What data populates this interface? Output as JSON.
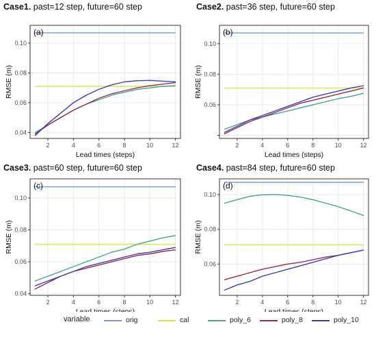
{
  "chart_data": [
    {
      "type": "line",
      "case_label": "Case1.",
      "title_rest": "past=12 step, future=60 step",
      "panel_tag": "(a)",
      "xlabel": "Lead times (steps)",
      "ylabel": "RMSE (m)",
      "xlim": [
        0.6,
        12.4
      ],
      "ylim": [
        0.036,
        0.112
      ],
      "xticks": [
        2,
        4,
        6,
        8,
        10,
        12
      ],
      "yticks": [
        0.04,
        0.06,
        0.08,
        0.1
      ],
      "ytick_labels": [
        "0.04",
        "0.06",
        "0.08",
        "0.10"
      ],
      "x": [
        1,
        2,
        3,
        4,
        5,
        6,
        7,
        8,
        9,
        10,
        11,
        12
      ],
      "series": [
        {
          "name": "orig",
          "values": [
            0.107,
            0.107,
            0.107,
            0.107,
            0.107,
            0.107,
            0.107,
            0.107,
            0.107,
            0.107,
            0.107,
            0.107
          ]
        },
        {
          "name": "cal",
          "values": [
            0.071,
            0.071,
            0.071,
            0.071,
            0.071,
            0.071,
            0.071,
            0.071,
            0.071,
            0.071,
            0.071,
            0.071
          ]
        },
        {
          "name": "poly_6",
          "values": [
            0.04,
            0.045,
            0.05,
            0.055,
            0.059,
            0.062,
            0.065,
            0.067,
            0.069,
            0.07,
            0.071,
            0.0715
          ]
        },
        {
          "name": "poly_8",
          "values": [
            0.039,
            0.045,
            0.05,
            0.055,
            0.059,
            0.063,
            0.066,
            0.068,
            0.07,
            0.0715,
            0.0725,
            0.0735
          ]
        },
        {
          "name": "poly_10",
          "values": [
            0.038,
            0.046,
            0.053,
            0.06,
            0.065,
            0.069,
            0.072,
            0.074,
            0.0748,
            0.075,
            0.0745,
            0.074
          ]
        }
      ]
    },
    {
      "type": "line",
      "case_label": "Case2.",
      "title_rest": "past=36 step, future=60 step",
      "panel_tag": "(b)",
      "xlabel": "Lead times (steps)",
      "ylabel": "RMSE (m)",
      "xlim": [
        0.6,
        12.4
      ],
      "ylim": [
        0.038,
        0.112
      ],
      "xticks": [
        2,
        4,
        6,
        8,
        10,
        12
      ],
      "yticks": [
        0.04,
        0.06,
        0.08,
        0.1
      ],
      "ytick_labels": [
        "",
        "0.06",
        "0.08",
        "0.10"
      ],
      "x": [
        1,
        2,
        3,
        4,
        5,
        6,
        7,
        8,
        9,
        10,
        11,
        12
      ],
      "series": [
        {
          "name": "orig",
          "values": [
            0.107,
            0.107,
            0.107,
            0.107,
            0.107,
            0.107,
            0.107,
            0.107,
            0.107,
            0.107,
            0.107,
            0.107
          ]
        },
        {
          "name": "cal",
          "values": [
            0.071,
            0.071,
            0.071,
            0.071,
            0.071,
            0.071,
            0.071,
            0.071,
            0.071,
            0.071,
            0.071,
            0.071
          ]
        },
        {
          "name": "poly_6",
          "values": [
            0.044,
            0.047,
            0.05,
            0.052,
            0.054,
            0.056,
            0.058,
            0.06,
            0.062,
            0.064,
            0.0655,
            0.0675
          ]
        },
        {
          "name": "poly_8",
          "values": [
            0.041,
            0.045,
            0.049,
            0.052,
            0.055,
            0.058,
            0.061,
            0.063,
            0.065,
            0.067,
            0.069,
            0.071
          ]
        },
        {
          "name": "poly_10",
          "values": [
            0.042,
            0.046,
            0.05,
            0.053,
            0.056,
            0.059,
            0.062,
            0.065,
            0.067,
            0.069,
            0.071,
            0.0725
          ]
        }
      ]
    },
    {
      "type": "line",
      "case_label": "Case3.",
      "title_rest": "past=60 step, future=60 step",
      "panel_tag": "(c)",
      "xlabel": "Lead times (steps)",
      "ylabel": "RMSE (m)",
      "xlim": [
        0.6,
        12.4
      ],
      "ylim": [
        0.039,
        0.112
      ],
      "xticks": [
        2,
        4,
        6,
        8,
        10,
        12
      ],
      "yticks": [
        0.04,
        0.06,
        0.08,
        0.1
      ],
      "ytick_labels": [
        "0.04",
        "0.06",
        "0.08",
        "0.10"
      ],
      "x": [
        1,
        2,
        3,
        4,
        5,
        6,
        7,
        8,
        9,
        10,
        11,
        12
      ],
      "series": [
        {
          "name": "orig",
          "values": [
            0.107,
            0.107,
            0.107,
            0.107,
            0.107,
            0.107,
            0.107,
            0.107,
            0.107,
            0.107,
            0.107,
            0.107
          ]
        },
        {
          "name": "cal",
          "values": [
            0.071,
            0.071,
            0.071,
            0.071,
            0.071,
            0.071,
            0.071,
            0.071,
            0.071,
            0.071,
            0.071,
            0.071
          ]
        },
        {
          "name": "poly_6",
          "values": [
            0.048,
            0.051,
            0.054,
            0.057,
            0.06,
            0.063,
            0.066,
            0.068,
            0.071,
            0.073,
            0.075,
            0.0765
          ]
        },
        {
          "name": "poly_8",
          "values": [
            0.043,
            0.047,
            0.051,
            0.054,
            0.056,
            0.058,
            0.06,
            0.062,
            0.064,
            0.065,
            0.0665,
            0.0675
          ]
        },
        {
          "name": "poly_10",
          "values": [
            0.045,
            0.048,
            0.051,
            0.054,
            0.057,
            0.059,
            0.061,
            0.063,
            0.065,
            0.066,
            0.0675,
            0.069
          ]
        }
      ]
    },
    {
      "type": "line",
      "case_label": "Case4.",
      "title_rest": "past=84 step, future=60 step",
      "panel_tag": "(d)",
      "xlabel": "Lead times (steps)",
      "ylabel": "RMSE (m)",
      "xlim": [
        0.6,
        12.4
      ],
      "ylim": [
        0.042,
        0.109
      ],
      "xticks": [
        2,
        4,
        6,
        8,
        10,
        12
      ],
      "yticks": [
        0.06,
        0.08,
        0.1
      ],
      "ytick_labels": [
        "0.06",
        "0.08",
        "0.10"
      ],
      "x": [
        1,
        2,
        3,
        4,
        5,
        6,
        7,
        8,
        9,
        10,
        11,
        12
      ],
      "series": [
        {
          "name": "orig",
          "values": [
            0.107,
            0.107,
            0.107,
            0.107,
            0.107,
            0.107,
            0.107,
            0.107,
            0.107,
            0.107,
            0.107,
            0.107
          ]
        },
        {
          "name": "cal",
          "values": [
            0.071,
            0.071,
            0.071,
            0.071,
            0.071,
            0.071,
            0.071,
            0.071,
            0.071,
            0.071,
            0.071,
            0.071
          ]
        },
        {
          "name": "poly_6",
          "values": [
            0.095,
            0.097,
            0.099,
            0.0998,
            0.1,
            0.0995,
            0.0985,
            0.097,
            0.095,
            0.093,
            0.0905,
            0.088
          ]
        },
        {
          "name": "poly_8",
          "values": [
            0.051,
            0.053,
            0.055,
            0.057,
            0.0585,
            0.06,
            0.061,
            0.0625,
            0.064,
            0.065,
            0.0665,
            0.068
          ]
        },
        {
          "name": "poly_10",
          "values": [
            0.045,
            0.048,
            0.05,
            0.053,
            0.055,
            0.057,
            0.059,
            0.061,
            0.063,
            0.065,
            0.0665,
            0.068
          ]
        }
      ]
    }
  ],
  "legend": {
    "title": "variable",
    "items": [
      "orig",
      "cal",
      "poly_6",
      "poly_8",
      "poly_10"
    ]
  },
  "colors": {
    "orig": "#6e9bd8",
    "cal": "#d6e84a",
    "poly_6": "#45a09a",
    "poly_8": "#962855",
    "poly_10": "#3b3fa7",
    "panel_bg": "#ffffff",
    "grid": "#ebebeb",
    "axis_text": "#4d4d4d"
  }
}
